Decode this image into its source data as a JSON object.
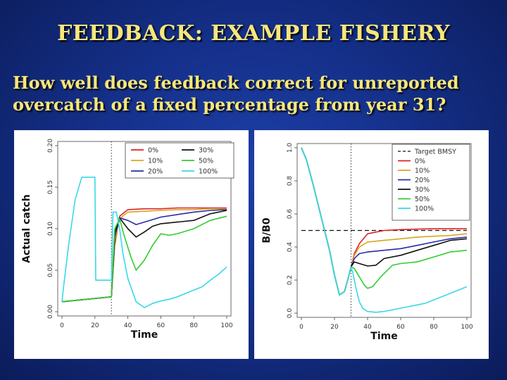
{
  "slide": {
    "title": "FEEDBACK: EXAMPLE FISHERY",
    "question": "How well does feedback correct for unreported overcatch of a fixed percentage from year 31?"
  },
  "chart_data": [
    {
      "type": "line",
      "xlabel": "Time",
      "ylabel": "Actual catch",
      "xlim": [
        0,
        100
      ],
      "ylim": [
        0,
        0.2
      ],
      "x_ticks": [
        0,
        20,
        40,
        60,
        80,
        100
      ],
      "y_ticks": [
        0.0,
        0.05,
        0.1,
        0.15,
        0.2
      ],
      "y_tick_labels": [
        "0.00",
        "0.05",
        "0.10",
        "0.15",
        "0.20"
      ],
      "grid": false,
      "legend": "top-right",
      "vlines": [
        {
          "x": 30,
          "style": "dotted"
        }
      ],
      "series": [
        {
          "name": "0%",
          "color": "#dd2222",
          "x": [
            0,
            30,
            32,
            35,
            40,
            50,
            60,
            70,
            80,
            90,
            100
          ],
          "y": [
            0.012,
            0.018,
            0.08,
            0.115,
            0.123,
            0.124,
            0.124,
            0.125,
            0.125,
            0.125,
            0.125
          ]
        },
        {
          "name": "10%",
          "color": "#d4a820",
          "x": [
            0,
            30,
            32,
            35,
            40,
            50,
            60,
            70,
            80,
            90,
            100
          ],
          "y": [
            0.012,
            0.018,
            0.085,
            0.112,
            0.12,
            0.121,
            0.122,
            0.123,
            0.123,
            0.124,
            0.124
          ]
        },
        {
          "name": "20%",
          "color": "#2a2aaa",
          "x": [
            0,
            30,
            32,
            35,
            40,
            45,
            50,
            60,
            70,
            80,
            90,
            100
          ],
          "y": [
            0.012,
            0.018,
            0.09,
            0.113,
            0.11,
            0.105,
            0.108,
            0.114,
            0.117,
            0.12,
            0.122,
            0.123
          ]
        },
        {
          "name": "30%",
          "color": "#111111",
          "x": [
            0,
            30,
            32,
            35,
            40,
            45,
            50,
            55,
            60,
            70,
            80,
            90,
            100
          ],
          "y": [
            0.012,
            0.018,
            0.095,
            0.113,
            0.1,
            0.09,
            0.096,
            0.103,
            0.106,
            0.108,
            0.11,
            0.118,
            0.122
          ]
        },
        {
          "name": "50%",
          "color": "#33cc33",
          "x": [
            0,
            30,
            32,
            35,
            38,
            42,
            45,
            50,
            55,
            60,
            65,
            70,
            80,
            90,
            100
          ],
          "y": [
            0.012,
            0.018,
            0.1,
            0.112,
            0.09,
            0.065,
            0.05,
            0.062,
            0.08,
            0.094,
            0.092,
            0.094,
            0.1,
            0.11,
            0.115
          ]
        },
        {
          "name": "100%",
          "color": "#3ad8e8",
          "x": [
            0,
            1,
            4,
            8,
            12,
            20,
            20.5,
            30,
            31,
            33,
            35,
            37,
            40,
            45,
            50,
            55,
            60,
            65,
            70,
            75,
            80,
            85,
            90,
            95,
            100
          ],
          "y": [
            0.012,
            0.03,
            0.08,
            0.135,
            0.162,
            0.162,
            0.038,
            0.038,
            0.12,
            0.12,
            0.1,
            0.07,
            0.04,
            0.012,
            0.005,
            0.01,
            0.013,
            0.015,
            0.018,
            0.022,
            0.026,
            0.03,
            0.038,
            0.045,
            0.054
          ]
        }
      ]
    },
    {
      "type": "line",
      "xlabel": "Time",
      "ylabel": "B/B0",
      "xlim": [
        0,
        100
      ],
      "ylim": [
        0,
        1.0
      ],
      "x_ticks": [
        0,
        20,
        40,
        60,
        80,
        100
      ],
      "y_ticks": [
        0.0,
        0.2,
        0.4,
        0.6,
        0.8,
        1.0
      ],
      "y_tick_labels": [
        "0.0",
        "0.2",
        "0.4",
        "0.6",
        "0.8",
        "1.0"
      ],
      "grid": false,
      "legend": "top-right",
      "vlines": [
        {
          "x": 30,
          "style": "dotted"
        }
      ],
      "series": [
        {
          "name": "Target BMSY",
          "color": "#111111",
          "dashed": true,
          "x": [
            0,
            100
          ],
          "y": [
            0.5,
            0.5
          ]
        },
        {
          "name": "0%",
          "color": "#dd2222",
          "x": [
            0,
            3,
            7,
            12,
            17,
            20,
            23,
            26,
            28,
            30,
            32,
            35,
            40,
            50,
            60,
            70,
            80,
            90,
            100
          ],
          "y": [
            1.0,
            0.93,
            0.78,
            0.58,
            0.38,
            0.23,
            0.11,
            0.13,
            0.2,
            0.28,
            0.36,
            0.42,
            0.48,
            0.5,
            0.505,
            0.508,
            0.51,
            0.51,
            0.51
          ]
        },
        {
          "name": "10%",
          "color": "#d4a820",
          "x": [
            0,
            3,
            7,
            12,
            17,
            20,
            23,
            26,
            28,
            30,
            32,
            35,
            40,
            50,
            60,
            70,
            80,
            90,
            100
          ],
          "y": [
            1.0,
            0.93,
            0.78,
            0.58,
            0.38,
            0.23,
            0.11,
            0.13,
            0.2,
            0.28,
            0.35,
            0.4,
            0.43,
            0.44,
            0.45,
            0.46,
            0.465,
            0.47,
            0.48
          ]
        },
        {
          "name": "20%",
          "color": "#2a2aaa",
          "x": [
            0,
            3,
            7,
            12,
            17,
            20,
            23,
            26,
            28,
            30,
            32,
            35,
            40,
            50,
            60,
            70,
            80,
            90,
            100
          ],
          "y": [
            1.0,
            0.93,
            0.78,
            0.58,
            0.38,
            0.23,
            0.11,
            0.13,
            0.2,
            0.28,
            0.33,
            0.36,
            0.37,
            0.38,
            0.39,
            0.41,
            0.43,
            0.45,
            0.46
          ]
        },
        {
          "name": "30%",
          "color": "#111111",
          "x": [
            0,
            3,
            7,
            12,
            17,
            20,
            23,
            26,
            28,
            30,
            32,
            35,
            40,
            45,
            50,
            60,
            70,
            80,
            90,
            100
          ],
          "y": [
            1.0,
            0.93,
            0.78,
            0.58,
            0.38,
            0.23,
            0.11,
            0.13,
            0.2,
            0.28,
            0.31,
            0.3,
            0.285,
            0.29,
            0.33,
            0.35,
            0.38,
            0.41,
            0.44,
            0.45
          ]
        },
        {
          "name": "50%",
          "color": "#33cc33",
          "x": [
            0,
            3,
            7,
            12,
            17,
            20,
            23,
            26,
            28,
            30,
            32,
            35,
            38,
            40,
            43,
            48,
            55,
            60,
            70,
            80,
            90,
            100
          ],
          "y": [
            1.0,
            0.93,
            0.78,
            0.58,
            0.38,
            0.23,
            0.11,
            0.13,
            0.2,
            0.28,
            0.27,
            0.22,
            0.17,
            0.15,
            0.16,
            0.22,
            0.29,
            0.3,
            0.31,
            0.34,
            0.37,
            0.38
          ]
        },
        {
          "name": "100%",
          "color": "#3ad8e8",
          "x": [
            0,
            3,
            7,
            12,
            17,
            20,
            23,
            26,
            28,
            30,
            31,
            33,
            35,
            37,
            40,
            45,
            50,
            55,
            60,
            65,
            70,
            75,
            80,
            85,
            90,
            95,
            100
          ],
          "y": [
            1.0,
            0.93,
            0.78,
            0.58,
            0.38,
            0.23,
            0.11,
            0.13,
            0.2,
            0.28,
            0.25,
            0.15,
            0.07,
            0.03,
            0.01,
            0.005,
            0.01,
            0.02,
            0.03,
            0.04,
            0.05,
            0.06,
            0.08,
            0.1,
            0.12,
            0.14,
            0.16
          ]
        }
      ]
    }
  ]
}
